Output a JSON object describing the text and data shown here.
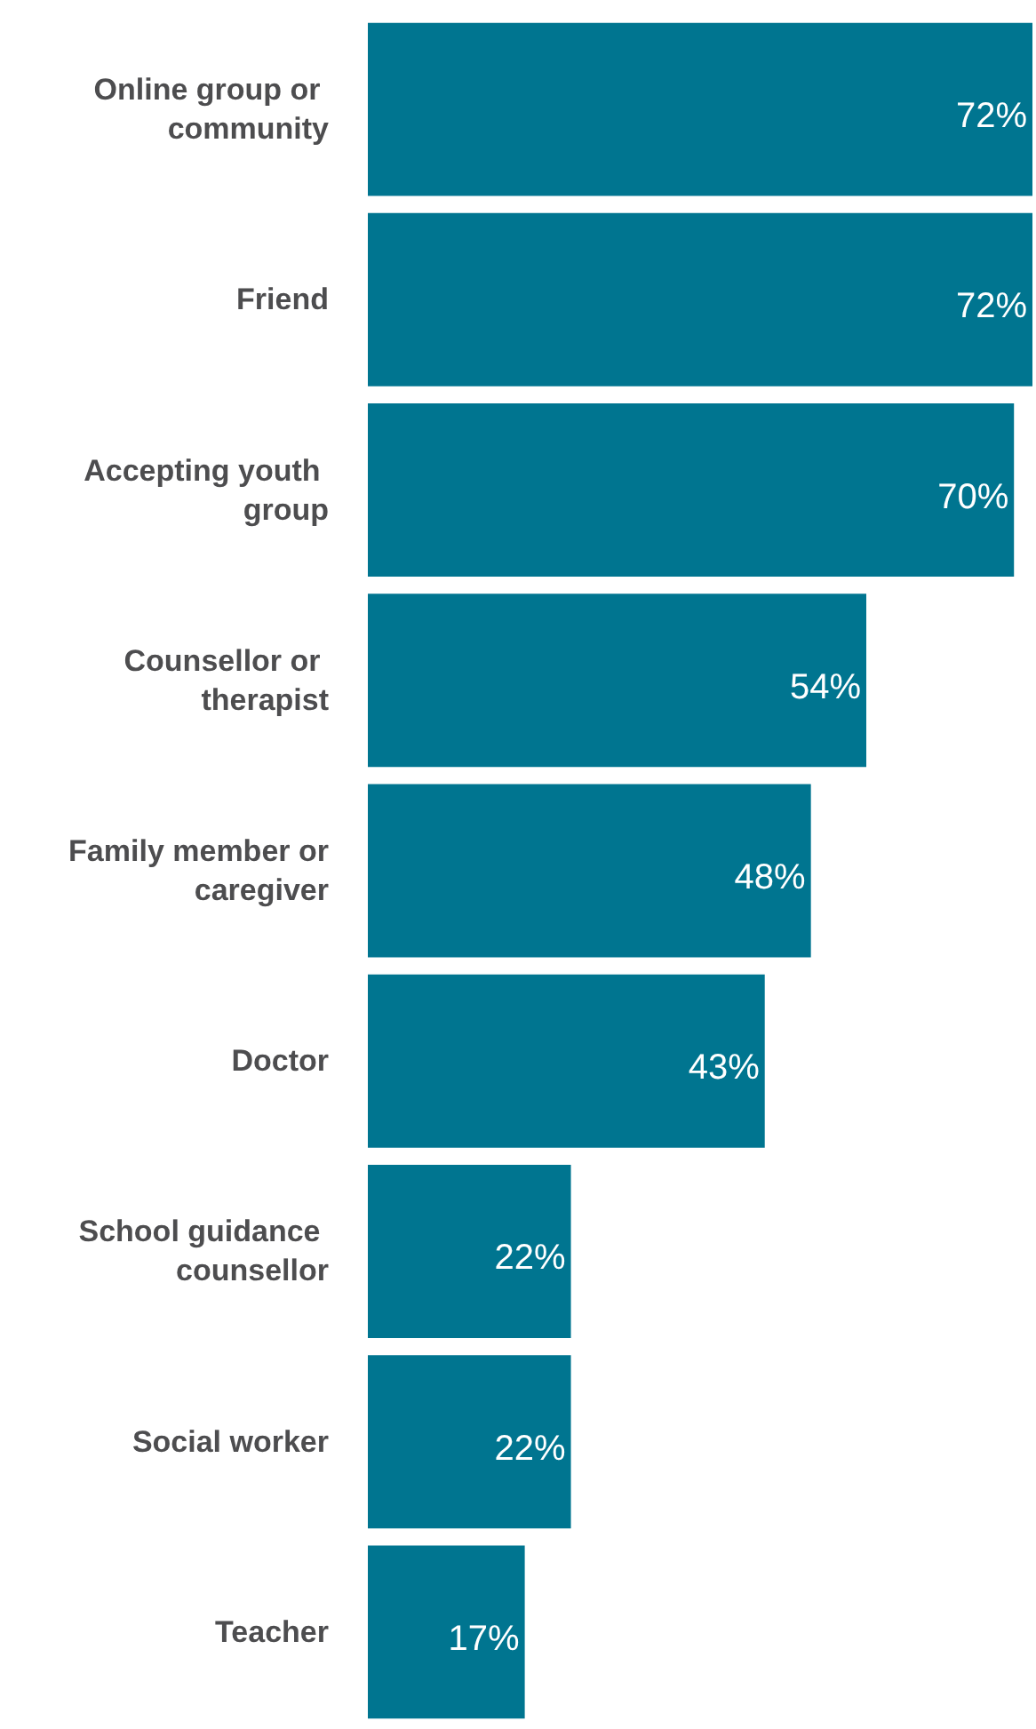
{
  "chart_data": {
    "type": "bar",
    "orientation": "horizontal",
    "categories": [
      "Online group or community",
      "Friend",
      "Accepting youth group",
      "Counsellor or therapist",
      "Family member or caregiver",
      "Doctor",
      "School guidance counsellor",
      "Social worker",
      "Teacher"
    ],
    "values": [
      72,
      72,
      70,
      54,
      48,
      43,
      22,
      22,
      17
    ],
    "value_labels": [
      "72%",
      "72%",
      "70%",
      "54%",
      "48%",
      "43%",
      "22%",
      "22%",
      "17%"
    ],
    "color": "#007590"
  }
}
